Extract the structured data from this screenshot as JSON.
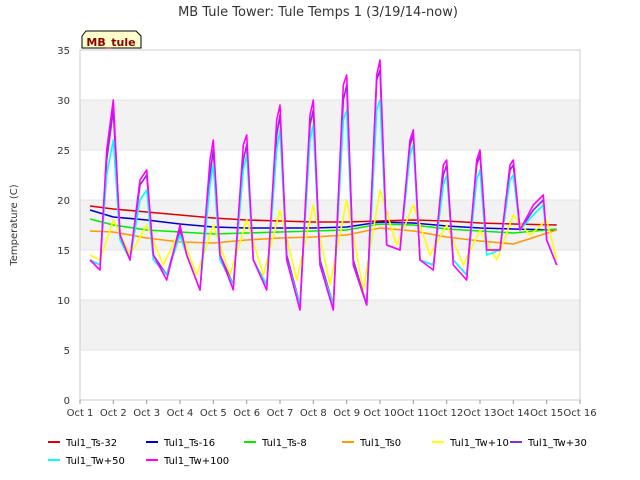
{
  "chart_data": {
    "type": "line",
    "title": "MB Tule Tower: Tule Temps 1 (3/19/14-now)",
    "xlabel": "",
    "ylabel": "Temperature (C)",
    "xlim": [
      0,
      15
    ],
    "ylim": [
      0,
      35
    ],
    "x_ticks": [
      {
        "v": 0,
        "label": "Oct 1"
      },
      {
        "v": 1,
        "label": "Oct 2"
      },
      {
        "v": 2,
        "label": "Oct 3"
      },
      {
        "v": 3,
        "label": "Oct 4"
      },
      {
        "v": 4,
        "label": "Oct 5"
      },
      {
        "v": 5,
        "label": "Oct 6"
      },
      {
        "v": 6,
        "label": "Oct 7"
      },
      {
        "v": 7,
        "label": "Oct 8"
      },
      {
        "v": 8,
        "label": "Oct 9"
      },
      {
        "v": 9,
        "label": "Oct 10"
      },
      {
        "v": 10,
        "label": "Oct 11"
      },
      {
        "v": 11,
        "label": "Oct 12"
      },
      {
        "v": 12,
        "label": "Oct 13"
      },
      {
        "v": 13,
        "label": "Oct 14"
      },
      {
        "v": 14,
        "label": "Oct 15"
      },
      {
        "v": 15,
        "label": "Oct 16"
      }
    ],
    "y_ticks": [
      0,
      5,
      10,
      15,
      20,
      25,
      30,
      35
    ],
    "grid": "horizontal-bands",
    "legend_position": "bottom",
    "badge": "MB_tule",
    "series": [
      {
        "name": "Tul1_Ts-32",
        "color": "#dd0000",
        "x": [
          0.3,
          1,
          2,
          3,
          4,
          5,
          6,
          7,
          8,
          9,
          10,
          11,
          12,
          13,
          14.3
        ],
        "y": [
          19.4,
          19.1,
          18.8,
          18.5,
          18.2,
          18.0,
          17.9,
          17.8,
          17.8,
          17.9,
          18.0,
          17.9,
          17.7,
          17.6,
          17.5
        ]
      },
      {
        "name": "Tul1_Ts-16",
        "color": "#0000cc",
        "x": [
          0.3,
          1,
          2,
          3,
          4,
          5,
          6,
          7,
          8,
          9,
          10,
          11,
          12,
          13,
          14.3
        ],
        "y": [
          19.0,
          18.3,
          18.0,
          17.6,
          17.3,
          17.2,
          17.2,
          17.2,
          17.3,
          17.8,
          17.7,
          17.4,
          17.2,
          17.1,
          17.0
        ]
      },
      {
        "name": "Tul1_Ts-8",
        "color": "#00ee00",
        "x": [
          0.3,
          1,
          2,
          3,
          4,
          5,
          6,
          7,
          8,
          9,
          10,
          11,
          12,
          13,
          14.3
        ],
        "y": [
          18.1,
          17.5,
          17.0,
          16.8,
          16.6,
          16.7,
          16.8,
          16.9,
          17.0,
          17.6,
          17.5,
          17.1,
          16.9,
          16.7,
          17.1
        ]
      },
      {
        "name": "Tul1_Ts0",
        "color": "#ff9900",
        "x": [
          0.3,
          1,
          2,
          3,
          4,
          5,
          6,
          7,
          8,
          9,
          10,
          11,
          12,
          13,
          14.3
        ],
        "y": [
          16.9,
          16.8,
          16.2,
          15.8,
          15.7,
          16.0,
          16.2,
          16.3,
          16.5,
          17.2,
          16.9,
          16.3,
          15.9,
          15.6,
          17.0
        ]
      },
      {
        "name": "Tul1_Tw+10",
        "color": "#ffff00",
        "x": [
          0.3,
          0.6,
          1.0,
          1.5,
          2.0,
          2.5,
          3.0,
          3.5,
          4.0,
          4.5,
          5.0,
          5.5,
          6.0,
          6.5,
          7.0,
          7.5,
          8.0,
          8.5,
          9.0,
          9.5,
          10.0,
          10.5,
          11.0,
          11.5,
          12.0,
          12.5,
          13.0,
          13.5,
          14.0,
          14.3
        ],
        "y": [
          14.5,
          14.0,
          18.0,
          14.5,
          17.5,
          13.5,
          17.0,
          12.5,
          17.5,
          12.5,
          18.0,
          12.5,
          19.0,
          12.0,
          19.5,
          11.5,
          20.0,
          11.0,
          21.0,
          15.5,
          19.5,
          14.5,
          17.5,
          13.5,
          17.0,
          14.0,
          18.5,
          16.5,
          18.0,
          14.0
        ]
      },
      {
        "name": "Tul1_Tw+30",
        "color": "#8a2be2",
        "x": [
          0.3,
          0.6,
          0.8,
          1.0,
          1.2,
          1.5,
          1.8,
          2.0,
          2.2,
          2.6,
          3.0,
          3.2,
          3.6,
          3.9,
          4.0,
          4.2,
          4.6,
          4.9,
          5.0,
          5.2,
          5.6,
          5.9,
          6.0,
          6.2,
          6.6,
          6.9,
          7.0,
          7.2,
          7.6,
          7.9,
          8.0,
          8.2,
          8.6,
          8.9,
          9.0,
          9.2,
          9.6,
          9.9,
          10.0,
          10.2,
          10.6,
          10.9,
          11.0,
          11.2,
          11.6,
          11.9,
          12.0,
          12.2,
          12.6,
          12.9,
          13.0,
          13.2,
          13.6,
          13.9,
          14.0,
          14.3
        ],
        "y": [
          14.0,
          13.5,
          24.0,
          29.0,
          16.5,
          14.0,
          21.5,
          22.5,
          14.5,
          12.5,
          17.0,
          14.5,
          11.0,
          22.5,
          25.0,
          14.5,
          11.5,
          24.0,
          25.5,
          14.0,
          11.5,
          26.5,
          28.5,
          14.5,
          9.5,
          27.5,
          29.0,
          14.0,
          9.5,
          30.0,
          31.5,
          14.0,
          9.5,
          32.0,
          33.0,
          15.5,
          15.0,
          25.5,
          26.5,
          14.0,
          13.5,
          22.5,
          23.5,
          14.0,
          12.5,
          23.5,
          24.5,
          15.0,
          15.0,
          23.0,
          23.5,
          17.0,
          19.0,
          20.0,
          16.0,
          13.5
        ]
      },
      {
        "name": "Tul1_Tw+50",
        "color": "#00ffff",
        "x": [
          0.3,
          0.6,
          0.8,
          1.0,
          1.2,
          1.5,
          1.8,
          2.0,
          2.2,
          2.6,
          3.0,
          3.2,
          3.6,
          3.9,
          4.0,
          4.2,
          4.6,
          4.9,
          5.0,
          5.2,
          5.6,
          5.9,
          6.0,
          6.2,
          6.6,
          6.9,
          7.0,
          7.2,
          7.6,
          7.9,
          8.0,
          8.2,
          8.6,
          8.9,
          9.0,
          9.2,
          9.6,
          9.9,
          10.0,
          10.2,
          10.6,
          10.9,
          11.0,
          11.2,
          11.6,
          11.9,
          12.0,
          12.2,
          12.6,
          12.9,
          13.0,
          13.2,
          13.6,
          13.9,
          14.0,
          14.3
        ],
        "y": [
          14.0,
          13.5,
          22.5,
          26.0,
          16.0,
          14.0,
          20.0,
          21.0,
          14.0,
          12.5,
          16.5,
          14.5,
          11.0,
          21.5,
          23.5,
          14.0,
          11.5,
          23.0,
          24.5,
          14.0,
          11.5,
          25.0,
          27.0,
          14.0,
          9.5,
          26.0,
          27.5,
          13.5,
          9.5,
          28.0,
          29.0,
          13.5,
          9.5,
          29.0,
          30.0,
          15.5,
          15.0,
          24.5,
          25.5,
          14.0,
          13.5,
          21.5,
          22.5,
          14.0,
          12.5,
          22.0,
          23.0,
          14.5,
          15.0,
          22.0,
          22.5,
          17.0,
          18.5,
          19.5,
          16.0,
          13.5
        ]
      },
      {
        "name": "Tul1_Tw+100",
        "color": "#ff00ff",
        "x": [
          0.3,
          0.6,
          0.8,
          1.0,
          1.2,
          1.5,
          1.8,
          2.0,
          2.2,
          2.6,
          3.0,
          3.2,
          3.6,
          3.9,
          4.0,
          4.2,
          4.6,
          4.9,
          5.0,
          5.2,
          5.6,
          5.9,
          6.0,
          6.2,
          6.6,
          6.9,
          7.0,
          7.2,
          7.6,
          7.9,
          8.0,
          8.2,
          8.6,
          8.9,
          9.0,
          9.2,
          9.6,
          9.9,
          10.0,
          10.2,
          10.6,
          10.9,
          11.0,
          11.2,
          11.6,
          11.9,
          12.0,
          12.2,
          12.6,
          12.9,
          13.0,
          13.2,
          13.6,
          13.9,
          14.0,
          14.3
        ],
        "y": [
          14.0,
          13.0,
          25.0,
          30.0,
          16.5,
          14.0,
          22.0,
          23.0,
          14.5,
          12.0,
          17.5,
          14.5,
          11.0,
          24.0,
          26.0,
          14.5,
          11.0,
          25.5,
          26.5,
          14.0,
          11.0,
          28.0,
          29.5,
          14.0,
          9.0,
          28.5,
          30.0,
          13.5,
          9.0,
          31.5,
          32.5,
          13.5,
          9.5,
          32.5,
          34.0,
          15.5,
          15.0,
          26.0,
          27.0,
          14.0,
          13.0,
          23.5,
          24.0,
          13.5,
          12.0,
          24.0,
          25.0,
          15.0,
          15.0,
          23.5,
          24.0,
          17.0,
          19.5,
          20.5,
          16.0,
          13.5
        ]
      }
    ]
  }
}
